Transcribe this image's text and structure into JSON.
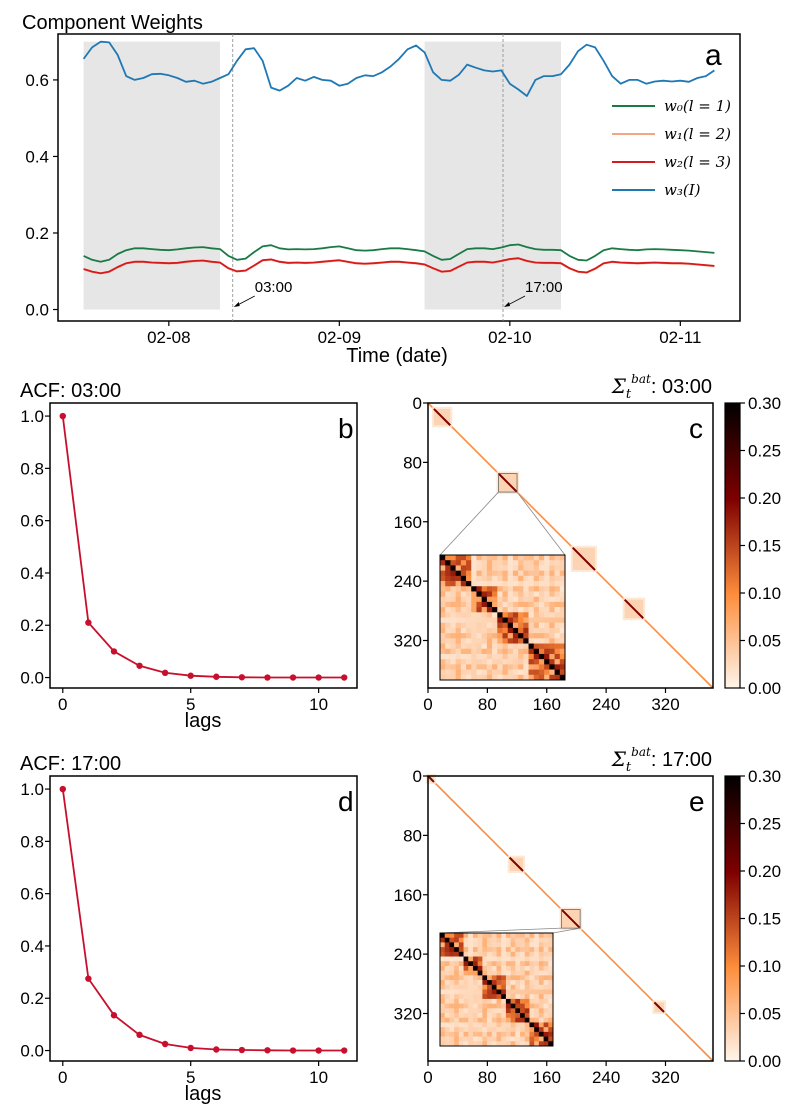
{
  "colors": {
    "w0": "#1a7a45",
    "w1": "#f4a582",
    "w2": "#d7191c",
    "w3": "#1f78b4",
    "acf": "#c8102e",
    "shade": "#e6e6e6",
    "heat_low": "#fff5eb",
    "heat_mid": "#fd8d3c",
    "heat_high": "#7f0000",
    "heat_top": "#000000"
  },
  "panel_a": {
    "title": "Component Weights",
    "letter": "a",
    "xlabel": "Time (date)",
    "xticks": [
      "02-08",
      "02-09",
      "02-10",
      "02-11"
    ],
    "yticks": [
      "0.0",
      "0.2",
      "0.4",
      "0.6"
    ],
    "legend": [
      {
        "key": "w0",
        "label": "w₀(l = 1)"
      },
      {
        "key": "w1",
        "label": "w₁(l = 2)"
      },
      {
        "key": "w2",
        "label": "w₂(l = 3)"
      },
      {
        "key": "w3",
        "label": "w₃(I)"
      }
    ],
    "annotations": [
      {
        "label": "03:00",
        "time": 1.625
      },
      {
        "label": "17:00",
        "time": 3.21
      }
    ]
  },
  "panel_b": {
    "title": "ACF: 03:00",
    "letter": "b",
    "xlabel": "lags"
  },
  "panel_c": {
    "title_prefix": "Σ",
    "title_sub": "t",
    "title_sup": "bat",
    "title_suffix": ": 03:00",
    "letter": "c"
  },
  "panel_d": {
    "title": "ACF: 17:00",
    "letter": "d",
    "xlabel": "lags"
  },
  "panel_e": {
    "title_prefix": "Σ",
    "title_sub": "t",
    "title_sup": "bat",
    "title_suffix": ": 17:00",
    "letter": "e"
  },
  "colorbar": {
    "ticks": [
      "0.00",
      "0.05",
      "0.10",
      "0.15",
      "0.20",
      "0.25",
      "0.30"
    ]
  },
  "chart_data": [
    {
      "type": "line",
      "id": "a",
      "title": "Component Weights",
      "xlabel": "Time (date)",
      "ylabel": "",
      "xlim": [
        0.6,
        4.6
      ],
      "ylim": [
        -0.03,
        0.72
      ],
      "x_tick_values": [
        1.25,
        2.25,
        3.25,
        4.25
      ],
      "x_tick_labels": [
        "02-08",
        "02-09",
        "02-10",
        "02-11"
      ],
      "y_tick_values": [
        0.0,
        0.2,
        0.4,
        0.6
      ],
      "shaded_spans": [
        [
          0.75,
          1.55
        ],
        [
          2.75,
          3.55
        ]
      ],
      "vlines": [
        1.625,
        3.21
      ],
      "x": [
        0.75,
        0.8,
        0.85,
        0.9,
        0.95,
        1.0,
        1.05,
        1.1,
        1.15,
        1.2,
        1.25,
        1.3,
        1.35,
        1.4,
        1.45,
        1.5,
        1.55,
        1.6,
        1.65,
        1.7,
        1.75,
        1.8,
        1.85,
        1.9,
        1.95,
        2.0,
        2.05,
        2.1,
        2.15,
        2.2,
        2.25,
        2.3,
        2.35,
        2.4,
        2.45,
        2.5,
        2.55,
        2.6,
        2.65,
        2.7,
        2.75,
        2.8,
        2.85,
        2.9,
        2.95,
        3.0,
        3.05,
        3.1,
        3.15,
        3.2,
        3.25,
        3.3,
        3.35,
        3.4,
        3.45,
        3.5,
        3.55,
        3.6,
        3.65,
        3.7,
        3.75,
        3.8,
        3.85,
        3.9,
        3.95,
        4.0,
        4.05,
        4.1,
        4.15,
        4.2,
        4.25,
        4.3,
        4.35,
        4.4,
        4.45
      ],
      "series": [
        {
          "name": "w0(l=1)",
          "color_key": "w0",
          "values": [
            0.14,
            0.13,
            0.125,
            0.13,
            0.145,
            0.155,
            0.16,
            0.16,
            0.158,
            0.156,
            0.155,
            0.157,
            0.16,
            0.162,
            0.163,
            0.16,
            0.158,
            0.14,
            0.13,
            0.133,
            0.15,
            0.165,
            0.168,
            0.16,
            0.157,
            0.158,
            0.157,
            0.158,
            0.16,
            0.163,
            0.165,
            0.16,
            0.155,
            0.154,
            0.155,
            0.158,
            0.16,
            0.16,
            0.158,
            0.155,
            0.152,
            0.14,
            0.13,
            0.132,
            0.145,
            0.158,
            0.16,
            0.16,
            0.158,
            0.162,
            0.168,
            0.17,
            0.163,
            0.158,
            0.156,
            0.156,
            0.155,
            0.14,
            0.13,
            0.128,
            0.14,
            0.155,
            0.16,
            0.158,
            0.156,
            0.155,
            0.157,
            0.158,
            0.157,
            0.156,
            0.155,
            0.154,
            0.152,
            0.15,
            0.148
          ]
        },
        {
          "name": "w1(l=2)",
          "color_key": "w1",
          "values": [
            0.105,
            0.098,
            0.094,
            0.098,
            0.11,
            0.12,
            0.124,
            0.124,
            0.122,
            0.121,
            0.12,
            0.121,
            0.124,
            0.126,
            0.127,
            0.124,
            0.122,
            0.107,
            0.099,
            0.101,
            0.114,
            0.128,
            0.13,
            0.124,
            0.121,
            0.122,
            0.121,
            0.122,
            0.124,
            0.126,
            0.128,
            0.124,
            0.12,
            0.119,
            0.12,
            0.122,
            0.124,
            0.124,
            0.122,
            0.12,
            0.117,
            0.107,
            0.098,
            0.1,
            0.111,
            0.122,
            0.124,
            0.124,
            0.122,
            0.126,
            0.131,
            0.133,
            0.126,
            0.122,
            0.121,
            0.121,
            0.12,
            0.107,
            0.098,
            0.096,
            0.106,
            0.12,
            0.124,
            0.122,
            0.121,
            0.12,
            0.121,
            0.122,
            0.121,
            0.12,
            0.12,
            0.119,
            0.117,
            0.115,
            0.113
          ]
        },
        {
          "name": "w2(l=3)",
          "color_key": "w2",
          "values": [
            0.106,
            0.099,
            0.095,
            0.099,
            0.111,
            0.121,
            0.125,
            0.125,
            0.123,
            0.122,
            0.121,
            0.122,
            0.125,
            0.127,
            0.128,
            0.125,
            0.123,
            0.108,
            0.1,
            0.102,
            0.115,
            0.129,
            0.131,
            0.125,
            0.122,
            0.123,
            0.122,
            0.123,
            0.125,
            0.127,
            0.129,
            0.125,
            0.121,
            0.12,
            0.121,
            0.123,
            0.125,
            0.125,
            0.123,
            0.121,
            0.118,
            0.108,
            0.099,
            0.101,
            0.112,
            0.123,
            0.125,
            0.125,
            0.123,
            0.127,
            0.132,
            0.134,
            0.127,
            0.123,
            0.122,
            0.122,
            0.121,
            0.108,
            0.099,
            0.097,
            0.107,
            0.121,
            0.125,
            0.123,
            0.122,
            0.121,
            0.122,
            0.123,
            0.122,
            0.121,
            0.121,
            0.12,
            0.118,
            0.116,
            0.114
          ]
        },
        {
          "name": "w3(I)",
          "color_key": "w3",
          "values": [
            0.655,
            0.685,
            0.7,
            0.698,
            0.665,
            0.61,
            0.6,
            0.605,
            0.615,
            0.616,
            0.612,
            0.605,
            0.595,
            0.598,
            0.59,
            0.595,
            0.605,
            0.615,
            0.65,
            0.68,
            0.683,
            0.65,
            0.58,
            0.572,
            0.585,
            0.605,
            0.598,
            0.608,
            0.6,
            0.598,
            0.585,
            0.59,
            0.605,
            0.612,
            0.61,
            0.62,
            0.635,
            0.655,
            0.68,
            0.69,
            0.672,
            0.62,
            0.6,
            0.598,
            0.613,
            0.64,
            0.632,
            0.625,
            0.622,
            0.625,
            0.59,
            0.575,
            0.558,
            0.6,
            0.61,
            0.61,
            0.615,
            0.64,
            0.675,
            0.692,
            0.685,
            0.65,
            0.61,
            0.59,
            0.6,
            0.6,
            0.59,
            0.596,
            0.598,
            0.596,
            0.598,
            0.595,
            0.605,
            0.61,
            0.625
          ]
        }
      ]
    },
    {
      "type": "line",
      "id": "b",
      "title": "ACF: 03:00",
      "xlabel": "lags",
      "ylabel": "",
      "xlim": [
        -0.5,
        11.5
      ],
      "ylim": [
        -0.04,
        1.05
      ],
      "x_tick_values": [
        0,
        5,
        10
      ],
      "x_tick_labels": [
        "0",
        "5",
        "10"
      ],
      "y_tick_values": [
        0.0,
        0.2,
        0.4,
        0.6,
        0.8,
        1.0
      ],
      "y_tick_labels": [
        "0.0",
        "0.2",
        "0.4",
        "0.6",
        "0.8",
        "1.0"
      ],
      "x": [
        0,
        1,
        2,
        3,
        4,
        5,
        6,
        7,
        8,
        9,
        10,
        11
      ],
      "values": [
        1.0,
        0.21,
        0.1,
        0.045,
        0.018,
        0.007,
        0.003,
        0.001,
        0.0,
        0.0,
        0.0,
        0.0
      ]
    },
    {
      "type": "heatmap",
      "id": "c",
      "title": "Σ_t^bat: 03:00",
      "matrix_size": 384,
      "x_tick_values": [
        0,
        80,
        160,
        240,
        320
      ],
      "x_tick_labels": [
        "0",
        "80",
        "160",
        "240",
        "320"
      ],
      "y_tick_values": [
        0,
        80,
        160,
        240,
        320
      ],
      "y_tick_labels": [
        "0",
        "80",
        "160",
        "240",
        "320"
      ],
      "vmin": 0.0,
      "vmax": 0.3,
      "blocks": [
        [
          8,
          30
        ],
        [
          95,
          120
        ],
        [
          195,
          225
        ],
        [
          265,
          290
        ]
      ],
      "inset_range": [
        95,
        120
      ]
    },
    {
      "type": "line",
      "id": "d",
      "title": "ACF: 17:00",
      "xlabel": "lags",
      "ylabel": "",
      "xlim": [
        -0.5,
        11.5
      ],
      "ylim": [
        -0.04,
        1.05
      ],
      "x_tick_values": [
        0,
        5,
        10
      ],
      "x_tick_labels": [
        "0",
        "5",
        "10"
      ],
      "y_tick_values": [
        0.0,
        0.2,
        0.4,
        0.6,
        0.8,
        1.0
      ],
      "y_tick_labels": [
        "0.0",
        "0.2",
        "0.4",
        "0.6",
        "0.8",
        "1.0"
      ],
      "x": [
        0,
        1,
        2,
        3,
        4,
        5,
        6,
        7,
        8,
        9,
        10,
        11
      ],
      "values": [
        1.0,
        0.275,
        0.135,
        0.06,
        0.025,
        0.01,
        0.004,
        0.002,
        0.001,
        0.0,
        0.0,
        0.0
      ]
    },
    {
      "type": "heatmap",
      "id": "e",
      "title": "Σ_t^bat: 17:00",
      "matrix_size": 384,
      "x_tick_values": [
        0,
        80,
        160,
        240,
        320
      ],
      "x_tick_labels": [
        "0",
        "80",
        "160",
        "240",
        "320"
      ],
      "y_tick_values": [
        0,
        80,
        160,
        240,
        320
      ],
      "y_tick_labels": [
        "0",
        "80",
        "160",
        "240",
        "320"
      ],
      "vmin": 0.0,
      "vmax": 0.3,
      "blocks": [
        [
          0,
          8
        ],
        [
          110,
          128
        ],
        [
          180,
          205
        ],
        [
          305,
          318
        ]
      ],
      "inset_range": [
        180,
        205
      ]
    }
  ]
}
